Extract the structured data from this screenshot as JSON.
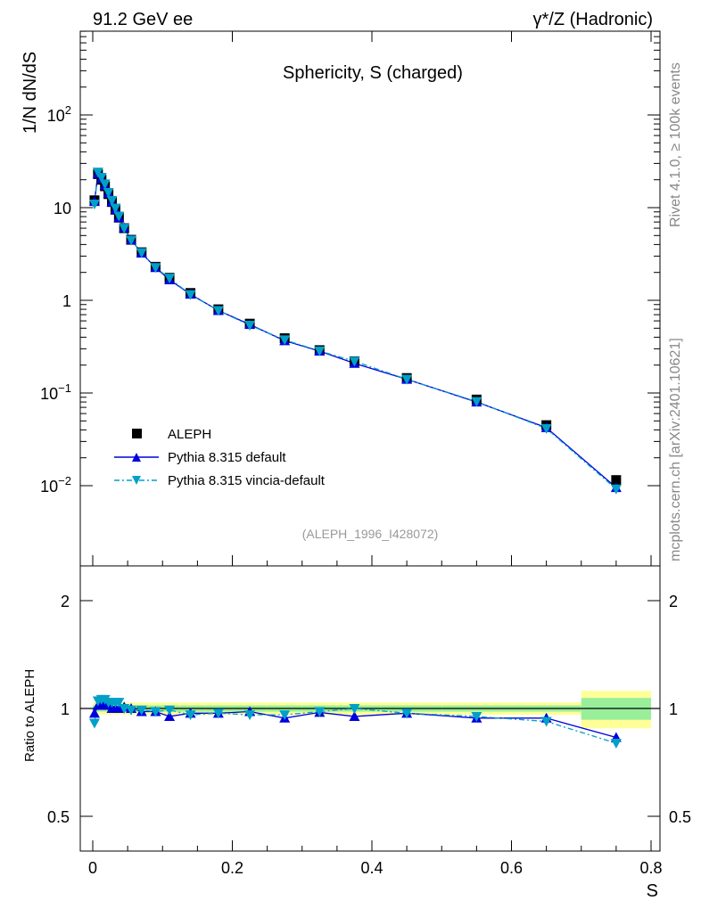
{
  "header": {
    "left": "91.2 GeV ee",
    "right": "γ*/Z (Hadronic)"
  },
  "side": {
    "top": "Rivet 4.1.0, ≥ 100k events",
    "bottom": "mcplots.cern.ch [arXiv:2401.10621]"
  },
  "chart_data": {
    "type": "line",
    "title": "Sphericity, S (charged)",
    "ylabel": "1/N  dN/dS",
    "xlabel": "S",
    "ratio_ylabel": "Ratio to ALEPH",
    "analysis": "(ALEPH_1996_I428072)",
    "xlim": [
      -0.02,
      0.8
    ],
    "ylim": [
      0.001,
      1000
    ],
    "ratio_ylim": [
      0.4,
      2.4
    ],
    "xticks": [
      "0",
      "0.2",
      "0.4",
      "0.6",
      "0.8"
    ],
    "yticks": [
      "10^-2",
      "10^-1",
      "1",
      "10",
      "10^2"
    ],
    "ratio_yticks": [
      "0.5",
      "1",
      "2"
    ],
    "legend": "middle-left",
    "x": [
      0.0025,
      0.0075,
      0.0125,
      0.0175,
      0.0225,
      0.0275,
      0.0325,
      0.0375,
      0.045,
      0.055,
      0.07,
      0.09,
      0.11,
      0.14,
      0.18,
      0.225,
      0.275,
      0.325,
      0.375,
      0.45,
      0.55,
      0.65,
      0.75
    ],
    "series": [
      {
        "name": "ALEPH",
        "color": "#000000",
        "values": [
          12,
          23,
          20,
          17,
          14,
          11.5,
          9.5,
          7.8,
          6,
          4.5,
          3.3,
          2.3,
          1.75,
          1.2,
          0.8,
          0.56,
          0.39,
          0.29,
          0.22,
          0.145,
          0.085,
          0.045,
          0.0115
        ]
      },
      {
        "name": "Pythia 8.315 default",
        "color": "#0000dd",
        "ratio": [
          0.97,
          1.02,
          1.03,
          1.02,
          1.02,
          1.0,
          1.0,
          1.0,
          1.01,
          1.0,
          0.98,
          0.98,
          0.95,
          0.97,
          0.97,
          0.98,
          0.94,
          0.975,
          0.95,
          0.97,
          0.94,
          0.94,
          0.83
        ]
      },
      {
        "name": "Pythia 8.315 vincia-default",
        "color": "#00a0c8",
        "ratio": [
          0.91,
          1.05,
          1.06,
          1.06,
          1.04,
          1.04,
          1.04,
          1.04,
          1.0,
          0.99,
          0.99,
          0.98,
          0.99,
          0.96,
          0.97,
          0.96,
          0.96,
          0.98,
          1.0,
          0.97,
          0.95,
          0.92,
          0.8
        ]
      }
    ]
  }
}
